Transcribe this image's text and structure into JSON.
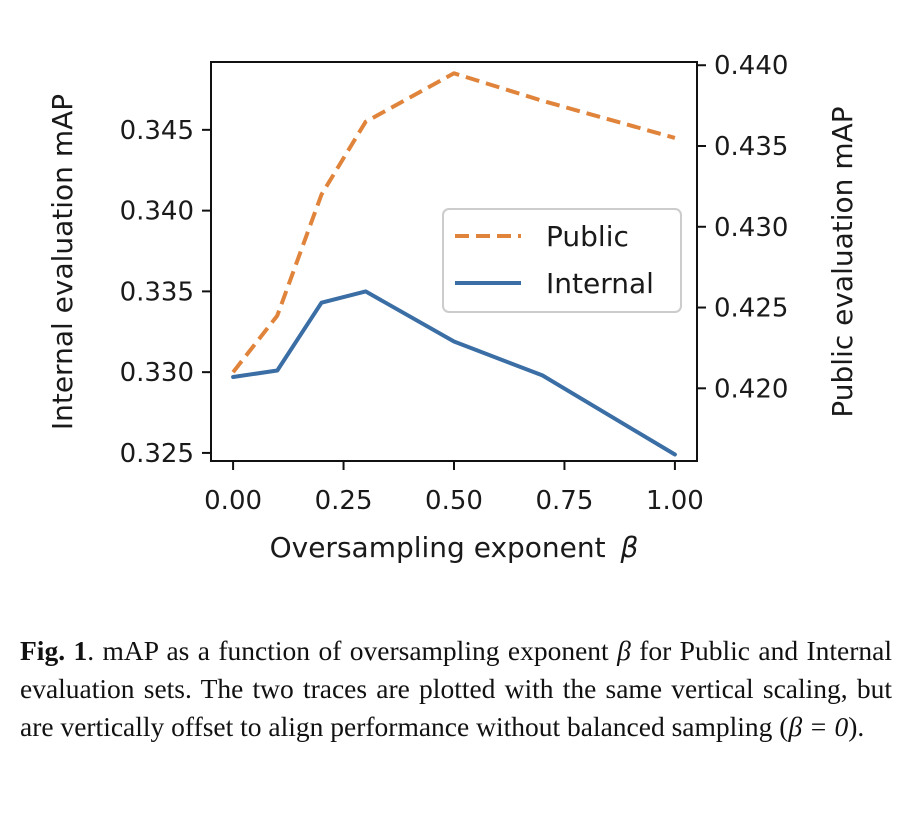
{
  "chart_data": {
    "type": "line",
    "xlabel_text": "Oversampling exponent",
    "xlabel_symbol": "β",
    "ylabel_left": "Internal evaluation mAP",
    "ylabel_right": "Public evaluation mAP",
    "x": [
      0.0,
      0.1,
      0.2,
      0.3,
      0.5,
      0.7,
      1.0
    ],
    "xlim": [
      -0.05,
      1.05
    ],
    "ylim_left": [
      0.3245,
      0.3492
    ],
    "ylim_right": [
      0.4155,
      0.4402
    ],
    "x_ticks": [
      "0.00",
      "0.25",
      "0.50",
      "0.75",
      "1.00"
    ],
    "x_tick_values": [
      0.0,
      0.25,
      0.5,
      0.75,
      1.0
    ],
    "y_left_ticks": [
      "0.325",
      "0.330",
      "0.335",
      "0.340",
      "0.345"
    ],
    "y_left_tick_values": [
      0.325,
      0.33,
      0.335,
      0.34,
      0.345
    ],
    "y_right_ticks": [
      "0.420",
      "0.425",
      "0.430",
      "0.435",
      "0.440"
    ],
    "y_right_tick_values": [
      0.42,
      0.425,
      0.43,
      0.435,
      0.44
    ],
    "grid": false,
    "legend_position": "center-right",
    "series": [
      {
        "name": "Public",
        "axis": "right",
        "style": "dashed",
        "color": "#e0843c",
        "values": [
          0.421,
          0.4245,
          0.432,
          0.4365,
          0.4395,
          0.4378,
          0.4355
        ]
      },
      {
        "name": "Internal",
        "axis": "left",
        "style": "solid",
        "color": "#3a6ea5",
        "values": [
          0.3297,
          0.3301,
          0.3343,
          0.335,
          0.3319,
          0.3298,
          0.3249
        ]
      }
    ]
  },
  "caption": {
    "label": "Fig. 1",
    "text_1": ". mAP as a function of oversampling exponent ",
    "symbol": "β",
    "text_2": " for Public and Internal evaluation sets. The two traces are plotted with the same vertical scaling, but are vertically offset to align performance without balanced sampling (",
    "symbol_eq": "β = 0",
    "text_3": ")."
  }
}
